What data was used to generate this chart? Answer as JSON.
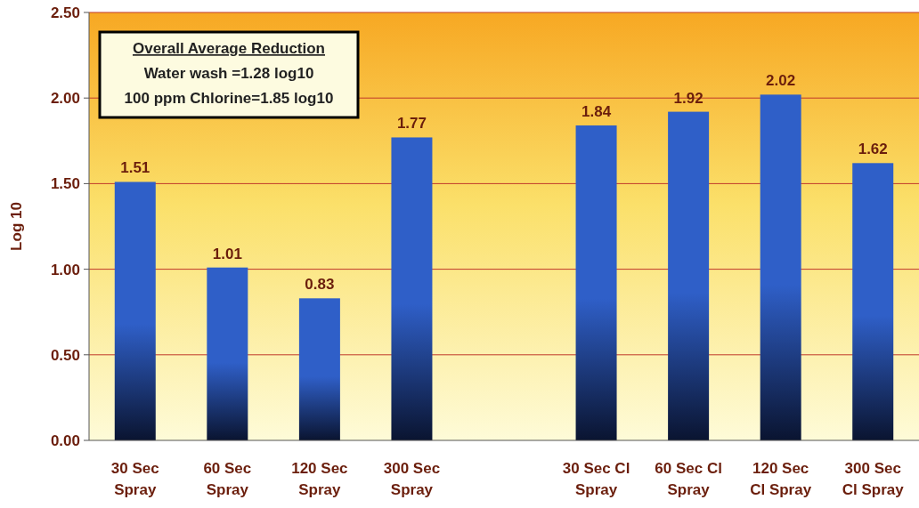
{
  "chart_data": {
    "type": "bar",
    "ylabel": "Log 10",
    "categories": [
      "30 Sec Spray",
      "60 Sec Spray",
      "120 Sec Spray",
      "300 Sec Spray",
      null,
      "30 Sec Cl Spray",
      "60 Sec Cl Spray",
      "120 Sec Cl Spray",
      "300 Sec Cl Spray"
    ],
    "values": [
      1.51,
      1.01,
      0.83,
      1.77,
      null,
      1.84,
      1.92,
      2.02,
      1.62
    ],
    "color": "#2f5fc8",
    "ylim": [
      0,
      2.5
    ],
    "yticks": [
      {
        "value": 0,
        "label": "0.00"
      },
      {
        "value": 0.5,
        "label": "0.50"
      },
      {
        "value": 1,
        "label": "1.00"
      },
      {
        "value": 1.5,
        "label": "1.50"
      },
      {
        "value": 2,
        "label": "2.00"
      },
      {
        "value": 2.5,
        "label": "2.50"
      }
    ],
    "grid": "y",
    "data_labels": true,
    "annotations": [
      "Overall Average Reduction",
      "Water wash =1.28 log10",
      "100 ppm Chlorine=1.85 log10"
    ]
  }
}
